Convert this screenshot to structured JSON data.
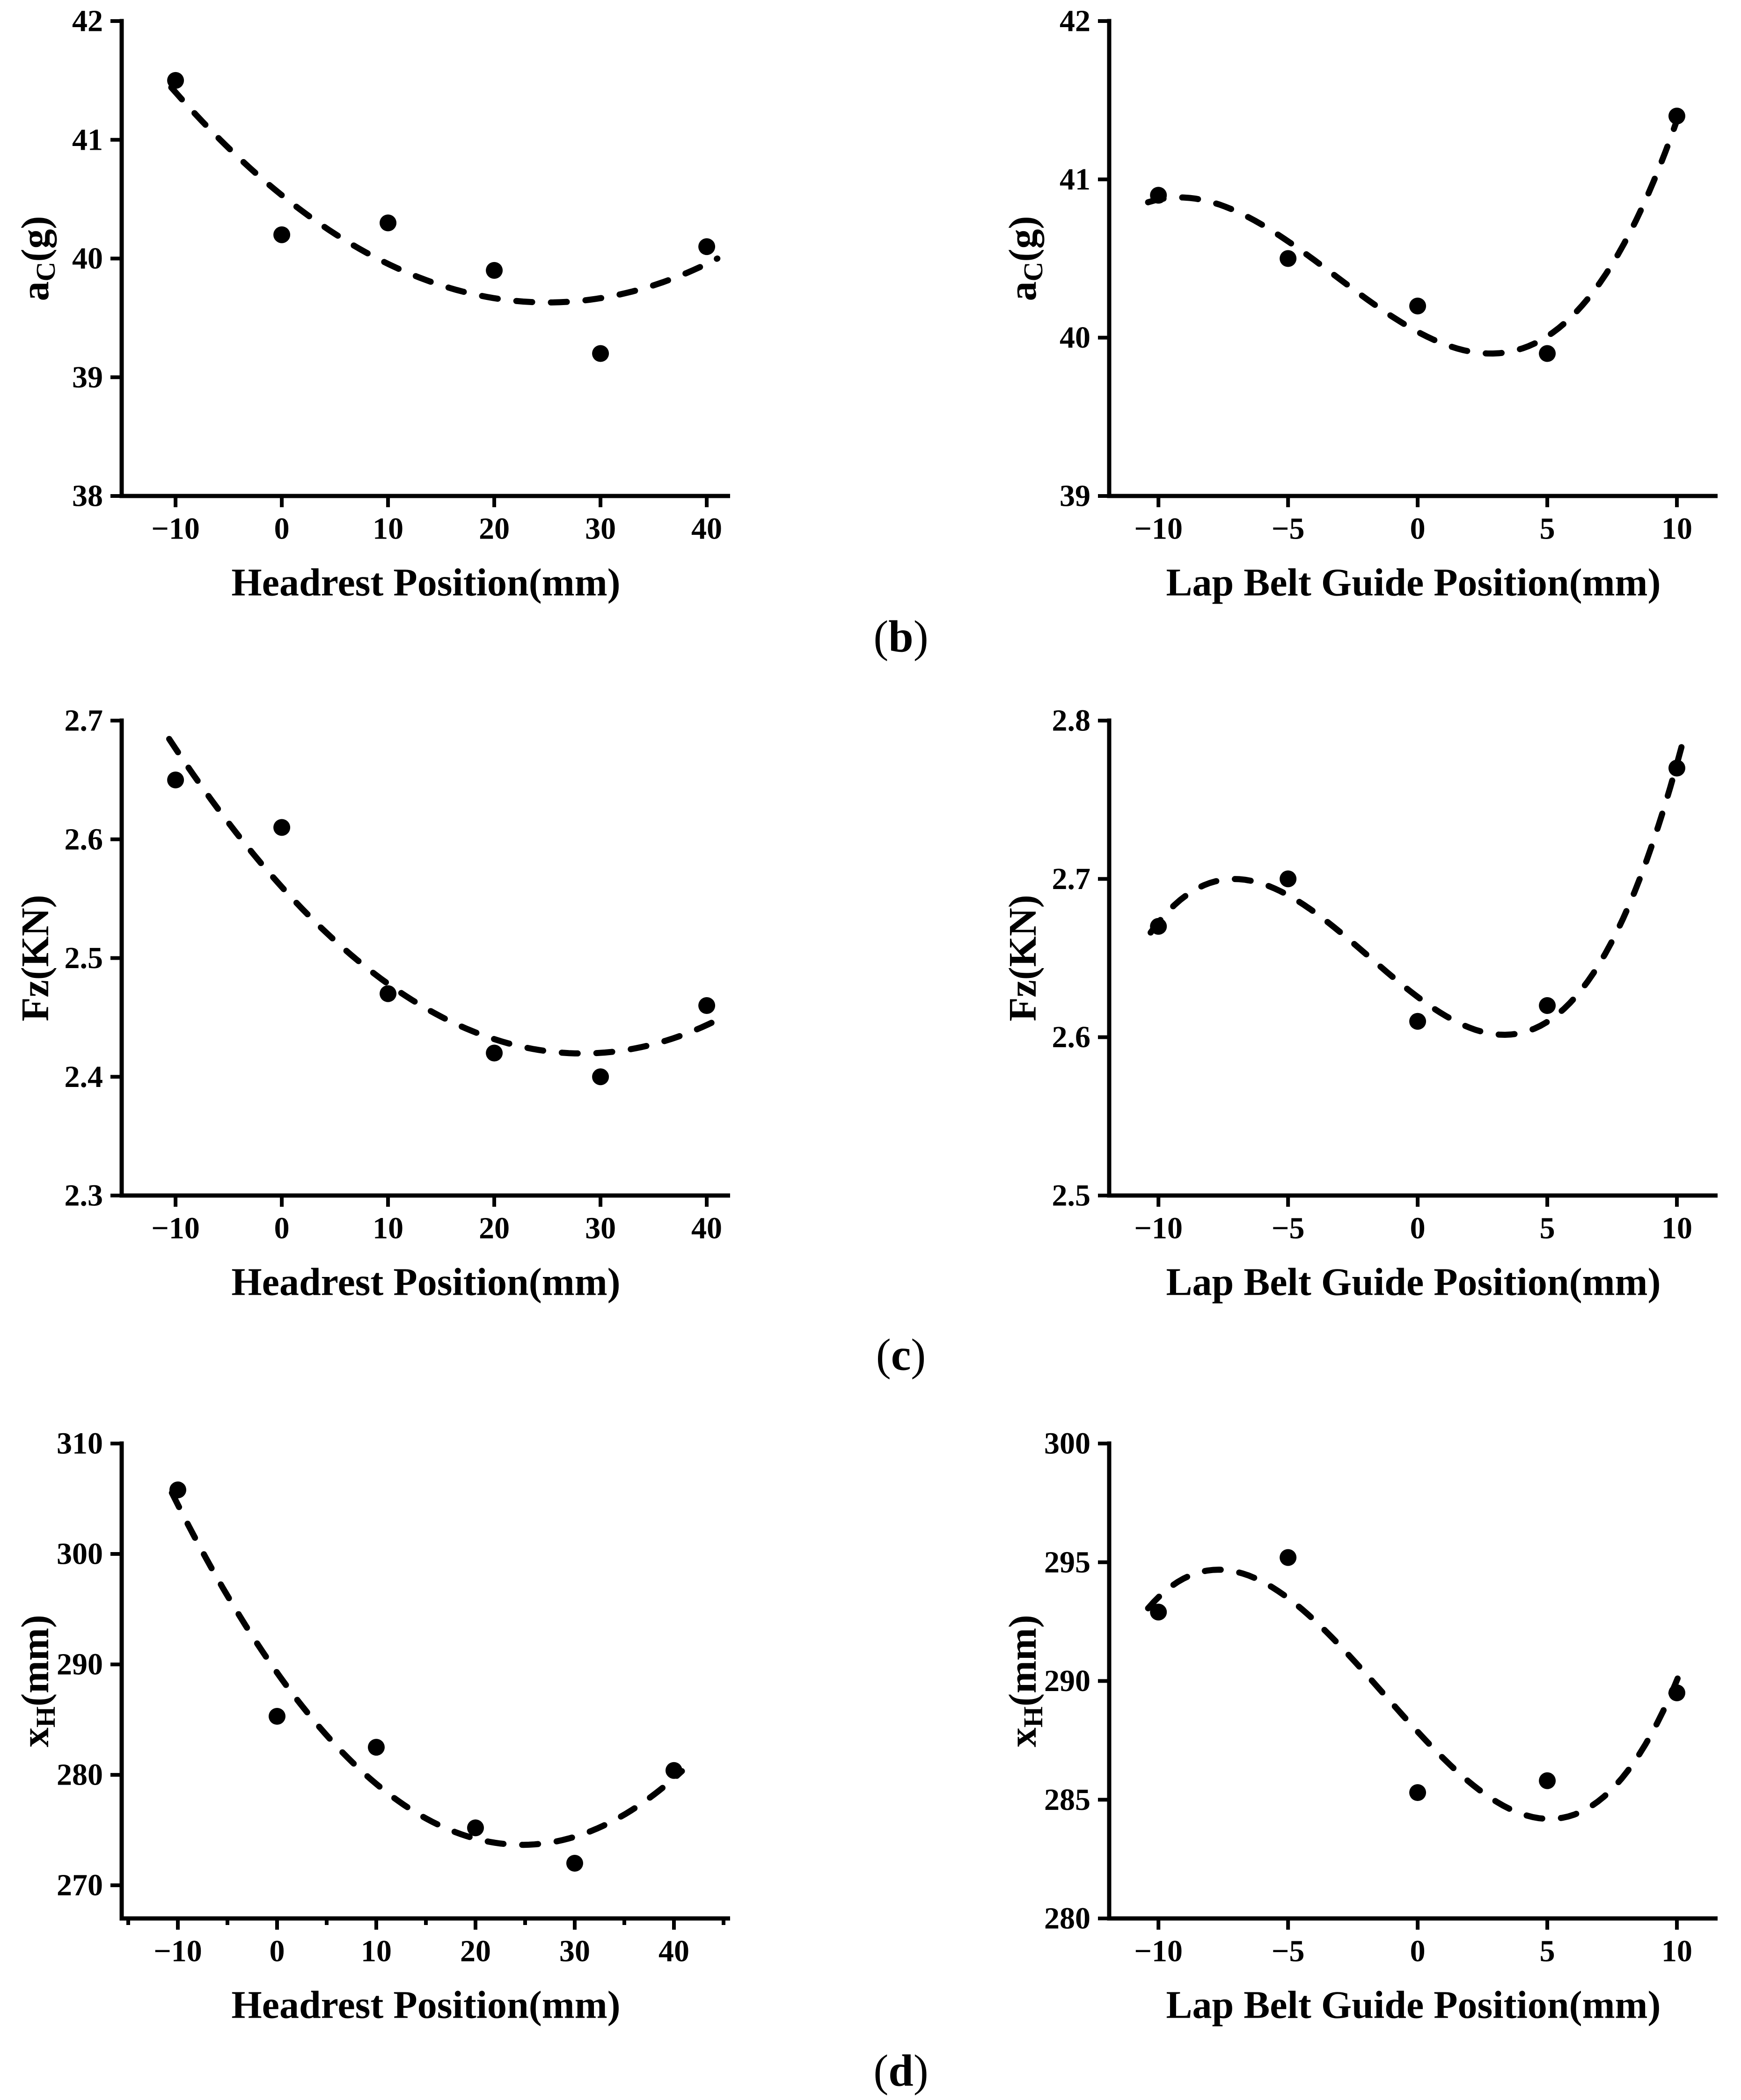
{
  "figure": {
    "background": "#ffffff",
    "ink_color": "#000000",
    "captions": [
      {
        "open": "(",
        "letter": "b",
        "close": ")"
      },
      {
        "open": "(",
        "letter": "c",
        "close": ")"
      },
      {
        "open": "(",
        "letter": "d",
        "close": ")"
      }
    ]
  },
  "chart_data": [
    {
      "id": "ac-vs-headrest",
      "type": "scatter",
      "grid_position": {
        "row": 0,
        "col": 0
      },
      "title": "",
      "xlabel": "Headrest Position(mm)",
      "ylabel_parts": {
        "pre": "a",
        "sub": "C",
        "post": "(g)"
      },
      "xlim": [
        -15.07,
        42.2
      ],
      "ylim": [
        38,
        42
      ],
      "xticks": [
        -10,
        0,
        10,
        20,
        30,
        40
      ],
      "xtick_labels": [
        "−10",
        "0",
        "10",
        "20",
        "30",
        "40"
      ],
      "x_minor_ticks": [],
      "yticks": [
        38,
        39,
        40,
        41,
        42
      ],
      "ytick_labels": [
        "38",
        "39",
        "40",
        "41",
        "42"
      ],
      "points": [
        [
          -10,
          41.5
        ],
        [
          0,
          40.2
        ],
        [
          10,
          40.3
        ],
        [
          20,
          39.9
        ],
        [
          30,
          39.2
        ],
        [
          40,
          40.1
        ]
      ],
      "fit_curve": {
        "style": "dashed",
        "poly_coeffs": [
          40.533,
          -0.072245,
          0.0014449
        ],
        "x_range": [
          -10.4,
          41.0
        ]
      },
      "grid": false,
      "legend": null
    },
    {
      "id": "ac-vs-lapbelt",
      "type": "scatter",
      "grid_position": {
        "row": 0,
        "col": 1
      },
      "title": "",
      "xlabel": "Lap Belt Guide Position(mm)",
      "ylabel_parts": {
        "pre": "a",
        "sub": "C",
        "post": "(g)"
      },
      "xlim": [
        -11.9,
        11.57
      ],
      "ylim": [
        39,
        42
      ],
      "xticks": [
        -10,
        -5,
        0,
        5,
        10
      ],
      "xtick_labels": [
        "−10",
        "−5",
        "0",
        "5",
        "10"
      ],
      "x_minor_ticks": [],
      "yticks": [
        39,
        40,
        41,
        42
      ],
      "ytick_labels": [
        "39",
        "40",
        "41",
        "42"
      ],
      "points": [
        [
          -10,
          40.9
        ],
        [
          -5,
          40.5
        ],
        [
          0,
          40.2
        ],
        [
          5,
          39.9
        ],
        [
          10,
          41.4
        ]
      ],
      "fit_curve": {
        "style": "dashed",
        "poly_coeffs": [
          40.0371,
          -0.08833,
          0.010857,
          0.0011333
        ],
        "x_range": [
          -10.4,
          10.25
        ]
      },
      "grid": false,
      "legend": null
    },
    {
      "id": "fz-vs-headrest",
      "type": "scatter",
      "grid_position": {
        "row": 1,
        "col": 0
      },
      "title": "",
      "xlabel": "Headrest Position(mm)",
      "ylabel_parts": {
        "pre": "Fz",
        "sub": "",
        "post": "(KN)"
      },
      "xlim": [
        -15.07,
        42.2
      ],
      "ylim": [
        2.3,
        2.7
      ],
      "xticks": [
        -10,
        0,
        10,
        20,
        30,
        40
      ],
      "xtick_labels": [
        "−10",
        "0",
        "10",
        "20",
        "30",
        "40"
      ],
      "x_minor_ticks": [],
      "yticks": [
        2.3,
        2.4,
        2.5,
        2.6,
        2.7
      ],
      "ytick_labels": [
        "2.3",
        "2.4",
        "2.5",
        "2.6",
        "2.7"
      ],
      "points": [
        [
          -10,
          2.65
        ],
        [
          0,
          2.61
        ],
        [
          10,
          2.47
        ],
        [
          20,
          2.42
        ],
        [
          30,
          2.4
        ],
        [
          40,
          2.46
        ]
      ],
      "fit_curve": {
        "style": "dashed",
        "poly_coeffs": [
          2.55985,
          -0.0099071,
          0.000175
        ],
        "x_range": [
          -10.6,
          40.7
        ]
      },
      "grid": false,
      "legend": null
    },
    {
      "id": "fz-vs-lapbelt",
      "type": "scatter",
      "grid_position": {
        "row": 1,
        "col": 1
      },
      "title": "",
      "xlabel": "Lap Belt Guide Position(mm)",
      "ylabel_parts": {
        "pre": "Fz",
        "sub": "",
        "post": "(KN)"
      },
      "xlim": [
        -11.9,
        11.57
      ],
      "ylim": [
        2.5,
        2.8
      ],
      "xticks": [
        -10,
        -5,
        0,
        5,
        10
      ],
      "xtick_labels": [
        "−10",
        "−5",
        "0",
        "5",
        "10"
      ],
      "x_minor_ticks": [],
      "yticks": [
        2.5,
        2.6,
        2.7,
        2.8
      ],
      "ytick_labels": [
        "2.5",
        "2.6",
        "2.7",
        "2.8"
      ],
      "points": [
        [
          -10,
          2.67
        ],
        [
          -5,
          2.7
        ],
        [
          0,
          2.61
        ],
        [
          5,
          2.62
        ],
        [
          10,
          2.77
        ]
      ],
      "fit_curve": {
        "style": "dashed",
        "poly_coeffs": [
          2.62543,
          -0.012333,
          0.00097143,
          0.00017333
        ],
        "x_range": [
          -10.3,
          10.2
        ]
      },
      "grid": false,
      "legend": null
    },
    {
      "id": "xh-vs-headrest",
      "type": "scatter",
      "grid_position": {
        "row": 2,
        "col": 0
      },
      "title": "",
      "xlabel": "Headrest Position(mm)",
      "ylabel_parts": {
        "pre": "x",
        "sub": "H",
        "post": "(mm)"
      },
      "xlim": [
        -15.66,
        45.66
      ],
      "ylim": [
        267,
        310
      ],
      "xticks": [
        -10,
        0,
        10,
        20,
        30,
        40
      ],
      "xtick_labels": [
        "−10",
        "0",
        "10",
        "20",
        "30",
        "40"
      ],
      "x_minor_ticks": [
        -15,
        -5,
        5,
        15,
        25,
        35,
        45
      ],
      "yticks": [
        270,
        280,
        290,
        300,
        310
      ],
      "ytick_labels": [
        "270",
        "280",
        "290",
        "300",
        "310"
      ],
      "points": [
        [
          -10,
          305.8
        ],
        [
          0,
          285.3
        ],
        [
          10,
          282.5
        ],
        [
          20,
          275.2
        ],
        [
          30,
          272.0
        ],
        [
          40,
          280.4
        ]
      ],
      "fit_curve": {
        "style": "dashed",
        "poly_coeffs": [
          289.257,
          -1.264179,
          0.025625
        ],
        "x_range": [
          -10.6,
          40.8
        ]
      },
      "grid": false,
      "legend": null
    },
    {
      "id": "xh-vs-lapbelt",
      "type": "scatter",
      "grid_position": {
        "row": 2,
        "col": 1
      },
      "title": "",
      "xlabel": "Lap Belt Guide Position(mm)",
      "ylabel_parts": {
        "pre": "x",
        "sub": "H",
        "post": "(mm)"
      },
      "xlim": [
        -11.9,
        11.57
      ],
      "ylim": [
        280,
        300
      ],
      "xticks": [
        -10,
        -5,
        0,
        5,
        10
      ],
      "xtick_labels": [
        "−10",
        "−5",
        "0",
        "5",
        "10"
      ],
      "x_minor_ticks": [],
      "yticks": [
        280,
        285,
        290,
        295,
        300
      ],
      "ytick_labels": [
        "280",
        "285",
        "290",
        "295",
        "300"
      ],
      "points": [
        [
          -10,
          292.9
        ],
        [
          -5,
          295.2
        ],
        [
          0,
          285.3
        ],
        [
          5,
          285.8
        ],
        [
          10,
          289.5
        ]
      ],
      "fit_curve": {
        "style": "dashed",
        "poly_coeffs": [
          287.863,
          -1.181667,
          0.039143,
          0.0100667
        ],
        "x_range": [
          -10.4,
          10.15
        ]
      },
      "grid": false,
      "legend": null
    }
  ]
}
